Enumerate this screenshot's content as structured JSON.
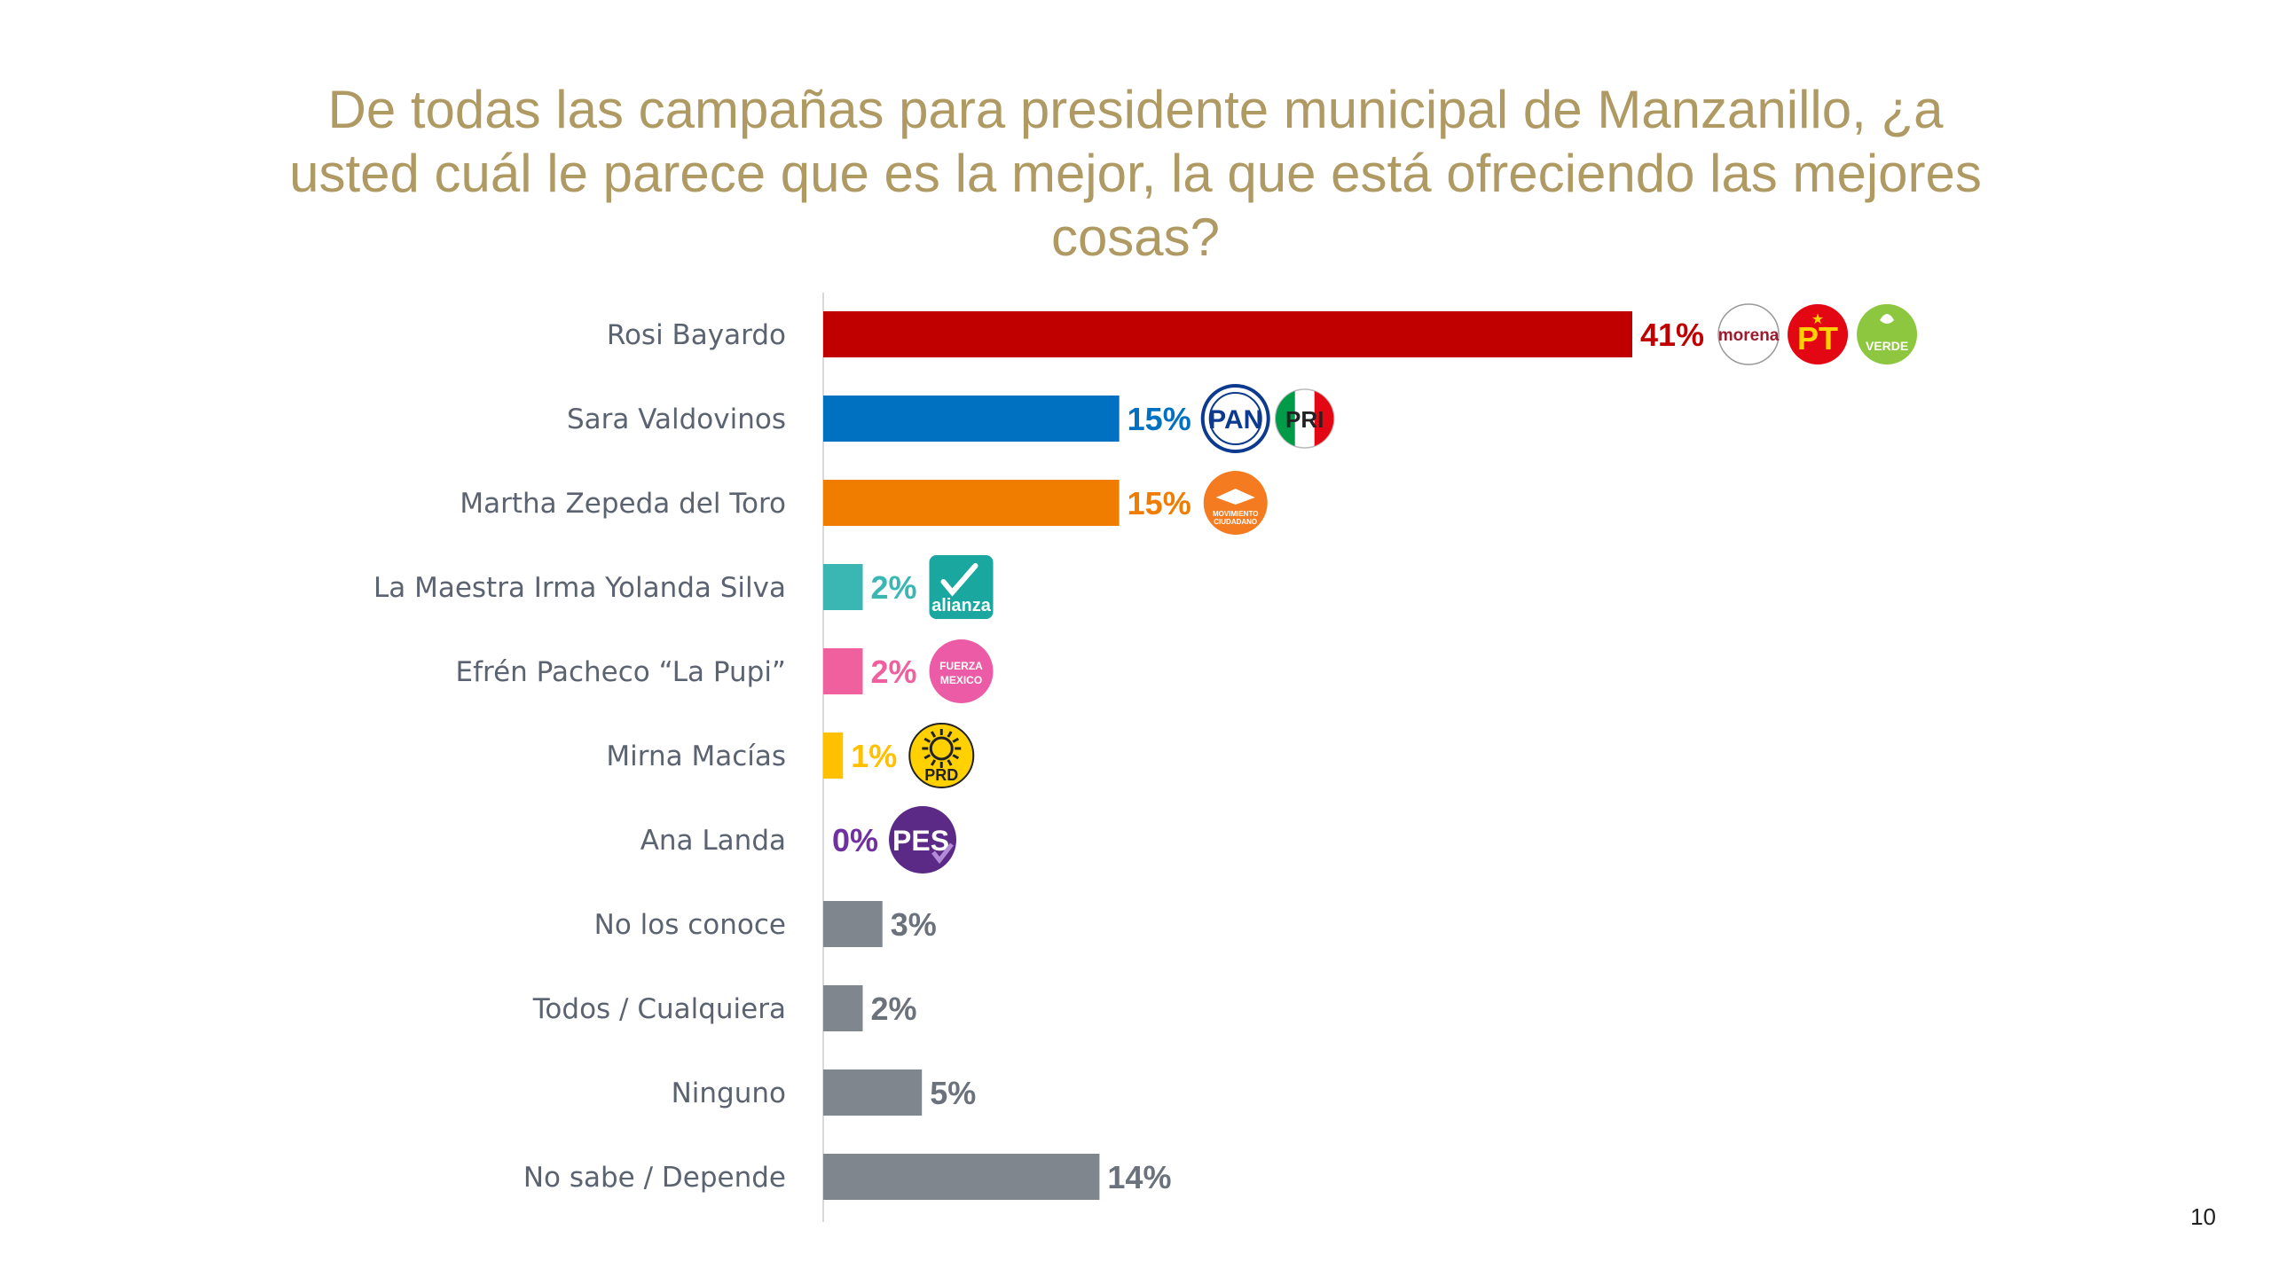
{
  "page": {
    "number": "10"
  },
  "chart_data": {
    "type": "bar",
    "orientation": "horizontal",
    "title": "De todas las campañas para presidente municipal de Manzanillo, ¿a usted cuál le parece que es la mejor, la que está ofreciendo las mejores cosas?",
    "categories": [
      "Rosi Bayardo",
      "Sara Valdovinos",
      "Martha Zepeda del Toro",
      "La Maestra Irma Yolanda Silva",
      "Efrén Pacheco “La Pupi”",
      "Mirna Macías",
      "Ana Landa",
      "No los conoce",
      "Todos / Cualquiera",
      "Ninguno",
      "No sabe / Depende"
    ],
    "values": [
      41,
      15,
      15,
      2,
      2,
      1,
      0,
      3,
      2,
      5,
      14
    ],
    "value_labels": [
      "41%",
      "15%",
      "15%",
      "2%",
      "2%",
      "1%",
      "0%",
      "3%",
      "2%",
      "5%",
      "14%"
    ],
    "colors": [
      "#c00000",
      "#0070c0",
      "#f07c00",
      "#3ab7b2",
      "#f0609e",
      "#ffc000",
      "#7030a0",
      "#7f868e",
      "#7f868e",
      "#7f868e",
      "#7f868e"
    ],
    "label_colors": [
      "#c00000",
      "#0070c0",
      "#f07c00",
      "#3ab7b2",
      "#f0609e",
      "#ffc000",
      "#7030a0",
      "#6b727b",
      "#6b727b",
      "#6b727b",
      "#6b727b"
    ],
    "xlim": [
      0,
      41
    ],
    "grid": false,
    "logos": [
      [
        "morena-logo",
        "pt-logo",
        "verde-logo"
      ],
      [
        "pan-logo",
        "pri-logo"
      ],
      [
        "movimiento-ciudadano-logo"
      ],
      [
        "nueva-alianza-logo"
      ],
      [
        "fuerza-mexico-logo"
      ],
      [
        "prd-logo"
      ],
      [
        "pes-logo"
      ],
      [],
      [],
      [],
      []
    ]
  }
}
